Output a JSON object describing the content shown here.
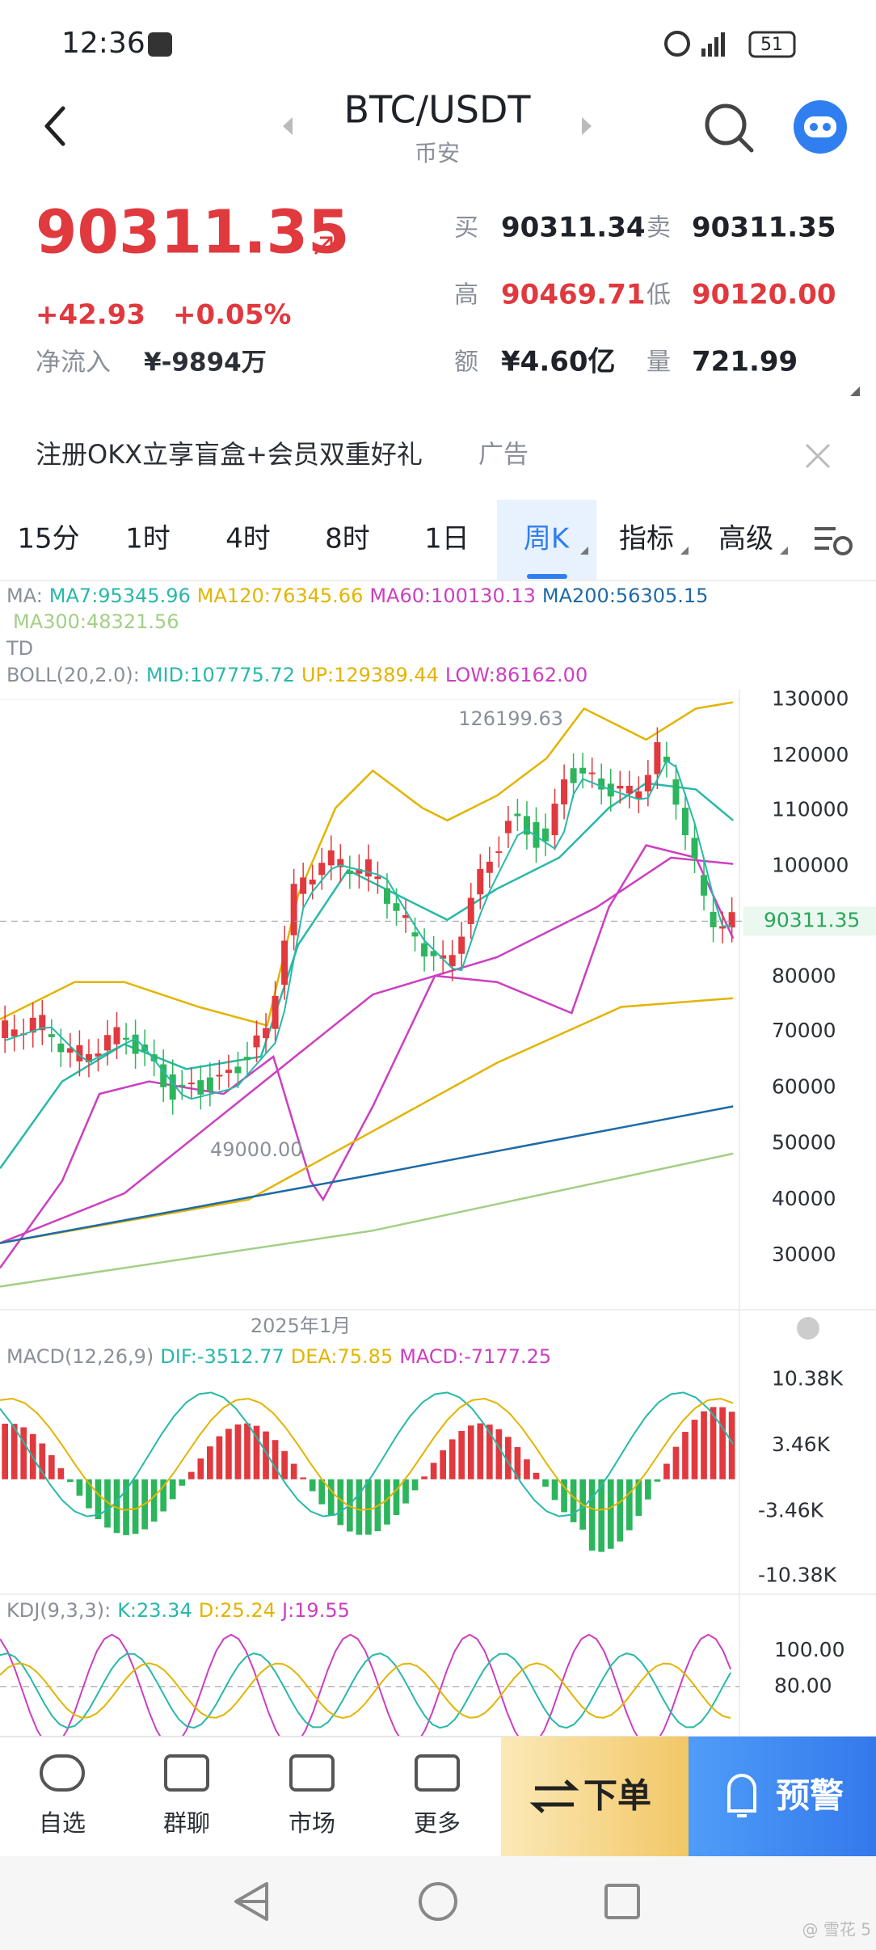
{
  "status": {
    "time": "12:36",
    "battery": "51"
  },
  "header": {
    "pair": "BTC/USDT",
    "exchange": "币安"
  },
  "price": {
    "last": "90311.35",
    "change": "+42.93",
    "change_pct": "+0.05%",
    "net_inflow_label": "净流入",
    "net_inflow": "¥-9894万"
  },
  "stats": [
    [
      {
        "label": "买",
        "value": "90311.34"
      },
      {
        "label": "卖",
        "value": "90311.35"
      }
    ],
    [
      {
        "label": "高",
        "value": "90469.71"
      },
      {
        "label": "低",
        "value": "90120.00"
      }
    ],
    [
      {
        "label": "额",
        "value": "¥4.60亿"
      },
      {
        "label": "量",
        "value": "721.99"
      }
    ]
  ],
  "ad": {
    "text": "注册OKX立享盲盒+会员双重好礼",
    "tag": "广告"
  },
  "tabs": [
    "15分",
    "1时",
    "4时",
    "8时",
    "1日",
    "周K",
    "指标",
    "高级"
  ],
  "ma": {
    "label": "MA:",
    "items": [
      {
        "text": "MA7:95345.96",
        "color": "#27b9a8"
      },
      {
        "text": "MA120:76345.66",
        "color": "#e3b400"
      },
      {
        "text": "MA60:100130.13",
        "color": "#cc3fc0"
      },
      {
        "text": "MA200:56305.15",
        "color": "#1e6aa6"
      },
      {
        "text": "MA300:48321.56",
        "color": "#a3cf86"
      }
    ]
  },
  "td": "TD",
  "boll": {
    "label": "BOLL(20,2.0):",
    "items": [
      {
        "text": "MID:107775.72",
        "color": "#27b9a8"
      },
      {
        "text": "UP:129389.44",
        "color": "#e3b400"
      },
      {
        "text": "LOW:86162.00",
        "color": "#cc3fc0"
      }
    ]
  },
  "price_axis": [
    "130000",
    "120000",
    "110000",
    "100000",
    "90311.35",
    "80000",
    "70000",
    "60000",
    "50000",
    "40000",
    "30000"
  ],
  "high_marker": "126199.63",
  "low_marker": "49000.00",
  "date_label": "2025年1月",
  "macd": {
    "label": "MACD(12,26,9)",
    "items": [
      {
        "text": "DIF:-3512.77",
        "color": "#27b9a8"
      },
      {
        "text": "DEA:75.85",
        "color": "#e3b400"
      },
      {
        "text": "MACD:-7177.25",
        "color": "#cc3fc0"
      }
    ],
    "axis": [
      "10.38K",
      "3.46K",
      "-3.46K",
      "-10.38K"
    ]
  },
  "kdj": {
    "label": "KDJ(9,3,3):",
    "items": [
      {
        "text": "K:23.34",
        "color": "#27b9a8"
      },
      {
        "text": "D:25.24",
        "color": "#e3b400"
      },
      {
        "text": "J:19.55",
        "color": "#cc3fc0"
      }
    ],
    "axis": [
      "100.00",
      "80.00"
    ]
  },
  "nav": [
    "自选",
    "群聊",
    "市场",
    "更多"
  ],
  "actions": [
    "下单",
    "预警"
  ],
  "watermark": "@ 雪花 5"
}
